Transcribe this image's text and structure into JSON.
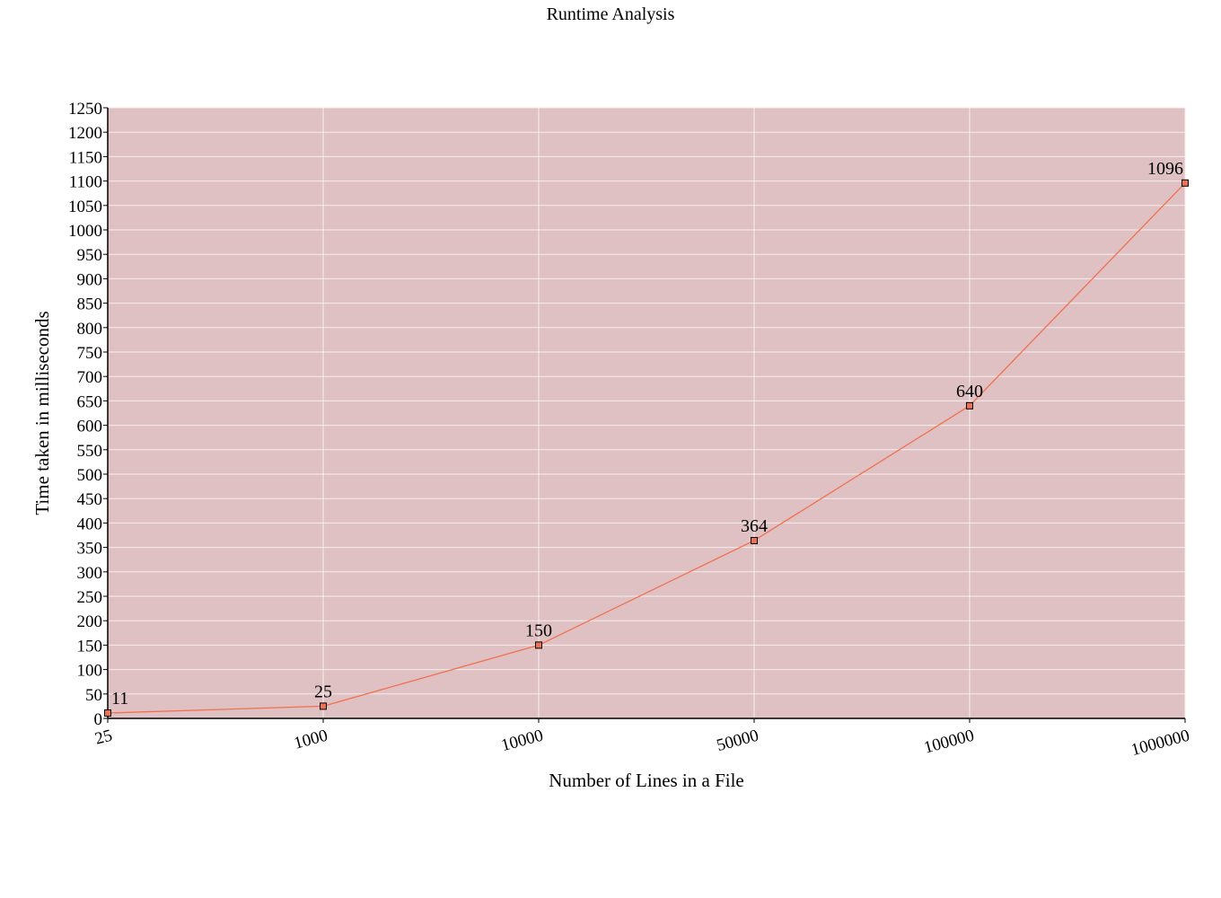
{
  "colors": {
    "plot_background": "#dfc1c3",
    "grid": "#f6eeee",
    "line": "#f07050",
    "marker_fill": "#f07050",
    "marker_stroke": "#000000",
    "axis": "#000000"
  },
  "chart_data": {
    "type": "line",
    "title": "Runtime Analysis",
    "xlabel": "Number of Lines in a File",
    "ylabel": "Time taken in milliseconds",
    "categories": [
      "25",
      "1000",
      "10000",
      "50000",
      "100000",
      "1000000"
    ],
    "series": [
      {
        "values": [
          11,
          25,
          150,
          364,
          640,
          1096
        ]
      }
    ],
    "data_labels": [
      "11",
      "25",
      "150",
      "364",
      "640",
      "1096"
    ],
    "ylim": [
      0,
      1250
    ],
    "ytick_step": 50,
    "grid": true,
    "legend": "none"
  }
}
